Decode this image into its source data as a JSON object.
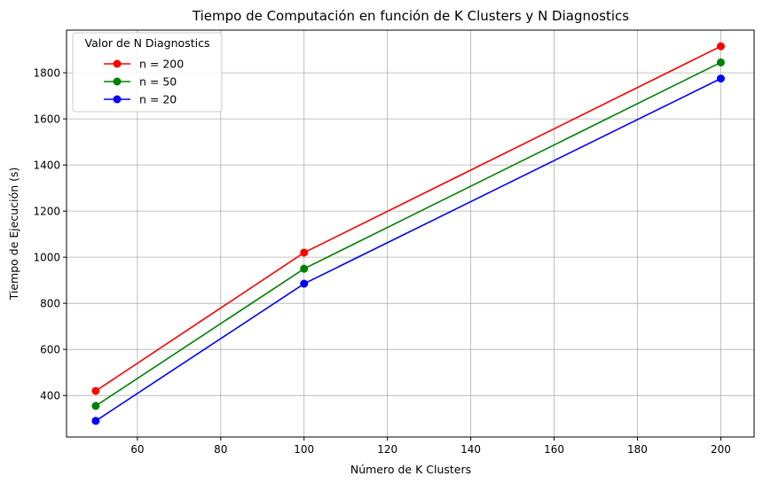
{
  "chart_data": {
    "type": "line",
    "title": "Tiempo de Computación en función de K Clusters y N Diagnostics",
    "xlabel": "Número de K Clusters",
    "ylabel": "Tiempo de Ejecución (s)",
    "x": [
      50,
      100,
      200
    ],
    "xlim": [
      43,
      208
    ],
    "ylim": [
      220,
      1985
    ],
    "xticks": [
      60,
      80,
      100,
      120,
      140,
      160,
      180,
      200
    ],
    "yticks": [
      400,
      600,
      800,
      1000,
      1200,
      1400,
      1600,
      1800
    ],
    "grid": true,
    "legend": {
      "title": "Valor de N Diagnostics",
      "placement": "top-left"
    },
    "series": [
      {
        "name": "n = 200",
        "color": "#ff0000",
        "values": [
          420,
          1020,
          1915
        ]
      },
      {
        "name": "n = 50",
        "color": "#008000",
        "values": [
          355,
          950,
          1845
        ]
      },
      {
        "name": "n = 20",
        "color": "#0000ff",
        "values": [
          290,
          885,
          1775
        ]
      }
    ]
  }
}
